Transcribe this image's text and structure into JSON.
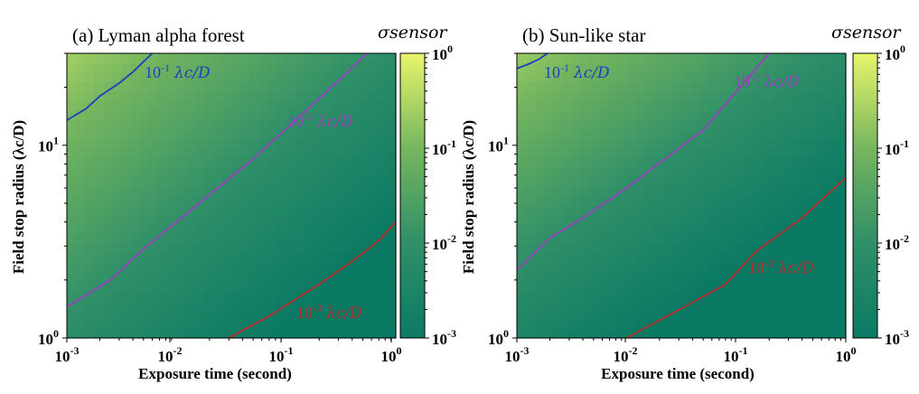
{
  "chart_data": [
    {
      "type": "heatmap",
      "title": "(a) Lyman alpha forest",
      "xlabel": "Exposure time (second)",
      "ylabel": "Field stop radius",
      "ylabel_unit": "(λc/D)",
      "x_scale": "log",
      "y_scale": "log",
      "xlim": [
        0.001,
        1
      ],
      "ylim": [
        1,
        30
      ],
      "x_ticks": [
        {
          "base": "10",
          "exp": "-3"
        },
        {
          "base": "10",
          "exp": "-2"
        },
        {
          "base": "10",
          "exp": "-1"
        },
        {
          "base": "10",
          "exp": "0"
        }
      ],
      "y_ticks": [
        {
          "base": "10",
          "exp": "0"
        },
        {
          "base": "10",
          "exp": "1"
        }
      ],
      "colorbar": {
        "label": "σsensor",
        "range": [
          0.001,
          1
        ],
        "ticks": [
          {
            "base": "10",
            "exp": "0"
          },
          {
            "base": "10",
            "exp": "-1"
          },
          {
            "base": "10",
            "exp": "-2"
          },
          {
            "base": "10",
            "exp": "-3"
          }
        ]
      },
      "contours": [
        {
          "level": 0.1,
          "mant": "10",
          "exp": "-1",
          "sym": "λc/D",
          "color": "#1f3fbf",
          "points": [
            [
              0.001,
              13.5
            ],
            [
              0.0015,
              15.5
            ],
            [
              0.002,
              18
            ],
            [
              0.003,
              21
            ],
            [
              0.004,
              24
            ],
            [
              0.006,
              30
            ]
          ]
        },
        {
          "level": 0.01,
          "mant": "10",
          "exp": "-2",
          "sym": "λc/D",
          "color": "#9a3fbf",
          "points": [
            [
              0.001,
              1.45
            ],
            [
              0.0025,
              2
            ],
            [
              0.005,
              2.9
            ],
            [
              0.01,
              4
            ],
            [
              0.05,
              8.5
            ],
            [
              0.15,
              15
            ],
            [
              0.55,
              30
            ]
          ]
        },
        {
          "level": 0.001,
          "mant": "10",
          "exp": "-3",
          "sym": "λc/D",
          "color": "#b82a2a",
          "points": [
            [
              0.03,
              1
            ],
            [
              0.07,
              1.3
            ],
            [
              0.2,
              1.9
            ],
            [
              0.4,
              2.5
            ],
            [
              0.7,
              3.2
            ],
            [
              1,
              4
            ]
          ]
        }
      ]
    },
    {
      "type": "heatmap",
      "title": "(b) Sun-like star",
      "xlabel": "Exposure time (second)",
      "ylabel": "Field stop radius",
      "ylabel_unit": "(λc/D)",
      "x_scale": "log",
      "y_scale": "log",
      "xlim": [
        0.001,
        1
      ],
      "ylim": [
        1,
        30
      ],
      "x_ticks": [
        {
          "base": "10",
          "exp": "-3"
        },
        {
          "base": "10",
          "exp": "-2"
        },
        {
          "base": "10",
          "exp": "-1"
        },
        {
          "base": "10",
          "exp": "0"
        }
      ],
      "y_ticks": [
        {
          "base": "10",
          "exp": "0"
        },
        {
          "base": "10",
          "exp": "1"
        }
      ],
      "colorbar": {
        "label": "σsensor",
        "range": [
          0.001,
          1
        ],
        "ticks": [
          {
            "base": "10",
            "exp": "0"
          },
          {
            "base": "10",
            "exp": "-1"
          },
          {
            "base": "10",
            "exp": "-2"
          },
          {
            "base": "10",
            "exp": "-3"
          }
        ]
      },
      "contours": [
        {
          "level": 0.1,
          "mant": "10",
          "exp": "-1",
          "sym": "λc/D",
          "color": "#1f3fbf",
          "points": [
            [
              0.001,
              25
            ],
            [
              0.0013,
              26.5
            ],
            [
              0.0016,
              28
            ],
            [
              0.0019,
              30
            ]
          ]
        },
        {
          "level": 0.01,
          "mant": "10",
          "exp": "-2",
          "sym": "λc/D",
          "color": "#9a3fbf",
          "points": [
            [
              0.001,
              2.25
            ],
            [
              0.002,
              3.3
            ],
            [
              0.004,
              4.2
            ],
            [
              0.01,
              6
            ],
            [
              0.05,
              12
            ],
            [
              0.2,
              30
            ]
          ]
        },
        {
          "level": 0.001,
          "mant": "10",
          "exp": "-3",
          "sym": "λc/D",
          "color": "#b82a2a",
          "points": [
            [
              0.01,
              1
            ],
            [
              0.03,
              1.4
            ],
            [
              0.08,
              1.9
            ],
            [
              0.15,
              2.8
            ],
            [
              0.4,
              4.2
            ],
            [
              1,
              6.8
            ]
          ]
        }
      ]
    }
  ]
}
